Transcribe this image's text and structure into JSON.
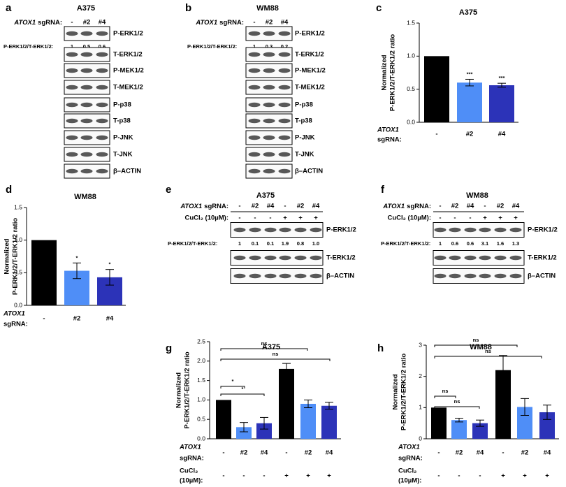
{
  "panels": [
    {
      "letter": "a",
      "title": "A375",
      "gene": "ATOX1",
      "sgrna_label": "sgRNA:",
      "lanes": [
        "-",
        "#2",
        "#4"
      ],
      "ratio_label": "P-ERK1/2/T-ERK1/2:",
      "ratios": [
        "1",
        "0.5",
        "0.6"
      ],
      "blots": [
        "P-ERK1/2",
        "T-ERK1/2",
        "P-MEK1/2",
        "T-MEK1/2",
        "P-p38",
        "T-p38",
        "P-JNK",
        "T-JNK",
        "β–ACTIN"
      ]
    },
    {
      "letter": "b",
      "title": "WM88",
      "gene": "ATOX1",
      "sgrna_label": "sgRNA:",
      "lanes": [
        "-",
        "#2",
        "#4"
      ],
      "ratio_label": "P-ERK1/2/T-ERK1/2:",
      "ratios": [
        "1",
        "0.3",
        "0.2"
      ],
      "blots": [
        "P-ERK1/2",
        "T-ERK1/2",
        "P-MEK1/2",
        "T-MEK1/2",
        "P-p38",
        "T-p38",
        "P-JNK",
        "T-JNK",
        "β–ACTIN"
      ]
    },
    {
      "letter": "e",
      "title": "A375",
      "gene": "ATOX1",
      "sgrna_label": "sgRNA:",
      "lanes": [
        "-",
        "#2",
        "#4",
        "-",
        "#2",
        "#4"
      ],
      "cucl2_label": "CuCl₂ (10µM):",
      "cucl2": [
        "-",
        "-",
        "-",
        "+",
        "+",
        "+"
      ],
      "ratio_label": "P-ERK1/2/T-ERK1/2:",
      "ratios": [
        "1",
        "0.1",
        "0.1",
        "1.9",
        "0.8",
        "1.0"
      ],
      "blots": [
        "P-ERK1/2",
        "T-ERK1/2",
        "β–ACTIN"
      ]
    },
    {
      "letter": "f",
      "title": "WM88",
      "gene": "ATOX1",
      "sgrna_label": "sgRNA:",
      "lanes": [
        "-",
        "#2",
        "#4",
        "-",
        "#2",
        "#4"
      ],
      "cucl2_label": "CuCl₂ (10µM):",
      "cucl2": [
        "-",
        "-",
        "-",
        "+",
        "+",
        "+"
      ],
      "ratio_label": "P-ERK1/2/T-ERK1/2:",
      "ratios": [
        "1",
        "0.6",
        "0.6",
        "3.1",
        "1.6",
        "1.3"
      ],
      "blots": [
        "P-ERK1/2",
        "T-ERK1/2",
        "β–ACTIN"
      ]
    }
  ],
  "chart_data": [
    {
      "type": "bar",
      "letter": "c",
      "title": "A375",
      "ylabel": [
        "Normalized",
        "P-ERK1/2/T-ERK1/2 ratio"
      ],
      "gene": "ATOX1",
      "sgrna_label": "sgRNA:",
      "categories": [
        "-",
        "#2",
        "#4"
      ],
      "values": [
        1.0,
        0.6,
        0.56
      ],
      "errors": [
        null,
        0.05,
        0.03
      ],
      "colors": [
        "#000000",
        "#4f8ef7",
        "#2c33b8"
      ],
      "ylim": [
        0,
        1.5
      ],
      "yticks": [
        {
          "value": 0,
          "label": "0.0"
        },
        0.5,
        {
          "value": 1,
          "label": "1.0"
        },
        1.5
      ],
      "annotations": [
        "***",
        "***"
      ]
    },
    {
      "type": "bar",
      "letter": "d",
      "title": "WM88",
      "ylabel": [
        "Normalized",
        "P-ERK1/2/T-ERK1/2 ratio"
      ],
      "gene": "ATOX1",
      "sgrna_label": "sgRNA:",
      "categories": [
        "-",
        "#2",
        "#4"
      ],
      "values": [
        1.0,
        0.53,
        0.43
      ],
      "errors": [
        null,
        0.12,
        0.12
      ],
      "colors": [
        "#000000",
        "#4f8ef7",
        "#2c33b8"
      ],
      "ylim": [
        0,
        1.5
      ],
      "yticks": [
        {
          "value": 0,
          "label": "0.0"
        },
        0.5,
        {
          "value": 1,
          "label": "1.0"
        },
        1.5
      ],
      "annotations": [
        "*",
        "*"
      ]
    },
    {
      "type": "bar",
      "letter": "g",
      "title": "A375",
      "ylabel": [
        "Normalized",
        "P-ERK1/2/T-ERK1/2 ratio"
      ],
      "gene": "ATOX1",
      "sgrna_label": "sgRNA:",
      "categories": [
        "-",
        "#2",
        "#4",
        "-",
        "#2",
        "#4"
      ],
      "cucl2_label": [
        "CuCl₂",
        "(10µM):"
      ],
      "cucl2": [
        "-",
        "-",
        "-",
        "+",
        "+",
        "+"
      ],
      "values": [
        1.0,
        0.3,
        0.4,
        1.8,
        0.9,
        0.85
      ],
      "errors": [
        null,
        0.12,
        0.15,
        0.14,
        0.1,
        0.09
      ],
      "colors": [
        "#000000",
        "#4f8ef7",
        "#2c33b8",
        "#000000",
        "#4f8ef7",
        "#2c33b8"
      ],
      "ylim": [
        0,
        2.5
      ],
      "yticks": [
        {
          "value": 0,
          "label": "0.0"
        },
        0.5,
        {
          "value": 1,
          "label": "1.0"
        },
        1.5,
        {
          "value": 2,
          "label": "2.0"
        },
        2.5
      ],
      "annotations": [
        "ns",
        "ns",
        "*",
        "*"
      ]
    },
    {
      "type": "bar",
      "letter": "h",
      "title": "WM88",
      "ylabel": [
        "Normalized",
        "P-ERK1/2/T-ERK1/2 ratio"
      ],
      "gene": "ATOX1",
      "sgrna_label": "sgRNA:",
      "categories": [
        "-",
        "#2",
        "#4",
        "-",
        "#2",
        "#4"
      ],
      "cucl2_label": [
        "CuCl₂",
        "(10µM):"
      ],
      "cucl2": [
        "-",
        "-",
        "-",
        "+",
        "+",
        "+"
      ],
      "values": [
        1.0,
        0.6,
        0.5,
        2.2,
        1.02,
        0.85
      ],
      "errors": [
        null,
        0.06,
        0.1,
        0.47,
        0.27,
        0.23
      ],
      "colors": [
        "#000000",
        "#4f8ef7",
        "#2c33b8",
        "#000000",
        "#4f8ef7",
        "#2c33b8"
      ],
      "ylim": [
        0,
        3
      ],
      "yticks": [
        0,
        1,
        2,
        3
      ],
      "annotations": [
        "ns",
        "ns",
        "ns",
        "ns"
      ]
    }
  ]
}
